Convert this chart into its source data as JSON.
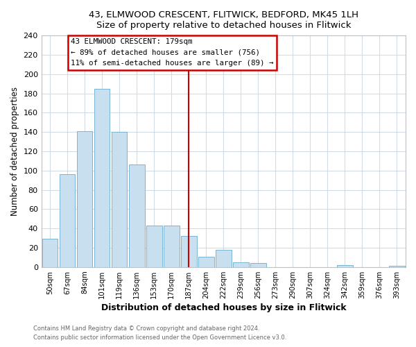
{
  "title1": "43, ELMWOOD CRESCENT, FLITWICK, BEDFORD, MK45 1LH",
  "title2": "Size of property relative to detached houses in Flitwick",
  "xlabel": "Distribution of detached houses by size in Flitwick",
  "ylabel": "Number of detached properties",
  "bar_labels": [
    "50sqm",
    "67sqm",
    "84sqm",
    "101sqm",
    "119sqm",
    "136sqm",
    "153sqm",
    "170sqm",
    "187sqm",
    "204sqm",
    "222sqm",
    "239sqm",
    "256sqm",
    "273sqm",
    "290sqm",
    "307sqm",
    "324sqm",
    "342sqm",
    "359sqm",
    "376sqm",
    "393sqm"
  ],
  "bar_values": [
    29,
    96,
    141,
    185,
    140,
    106,
    43,
    43,
    32,
    11,
    18,
    5,
    4,
    0,
    0,
    0,
    0,
    2,
    0,
    0,
    1
  ],
  "bar_color": "#c8dff0",
  "bar_edge_color": "#7ab4d4",
  "vline_index": 8,
  "vline_color": "#cc0000",
  "annotation_title": "43 ELMWOOD CRESCENT: 179sqm",
  "annotation_line1": "← 89% of detached houses are smaller (756)",
  "annotation_line2": "11% of semi-detached houses are larger (89) →",
  "annotation_box_color": "#ffffff",
  "annotation_box_edge": "#cc0000",
  "ylim": [
    0,
    240
  ],
  "yticks": [
    0,
    20,
    40,
    60,
    80,
    100,
    120,
    140,
    160,
    180,
    200,
    220,
    240
  ],
  "footer1": "Contains HM Land Registry data © Crown copyright and database right 2024.",
  "footer2": "Contains public sector information licensed under the Open Government Licence v3.0."
}
